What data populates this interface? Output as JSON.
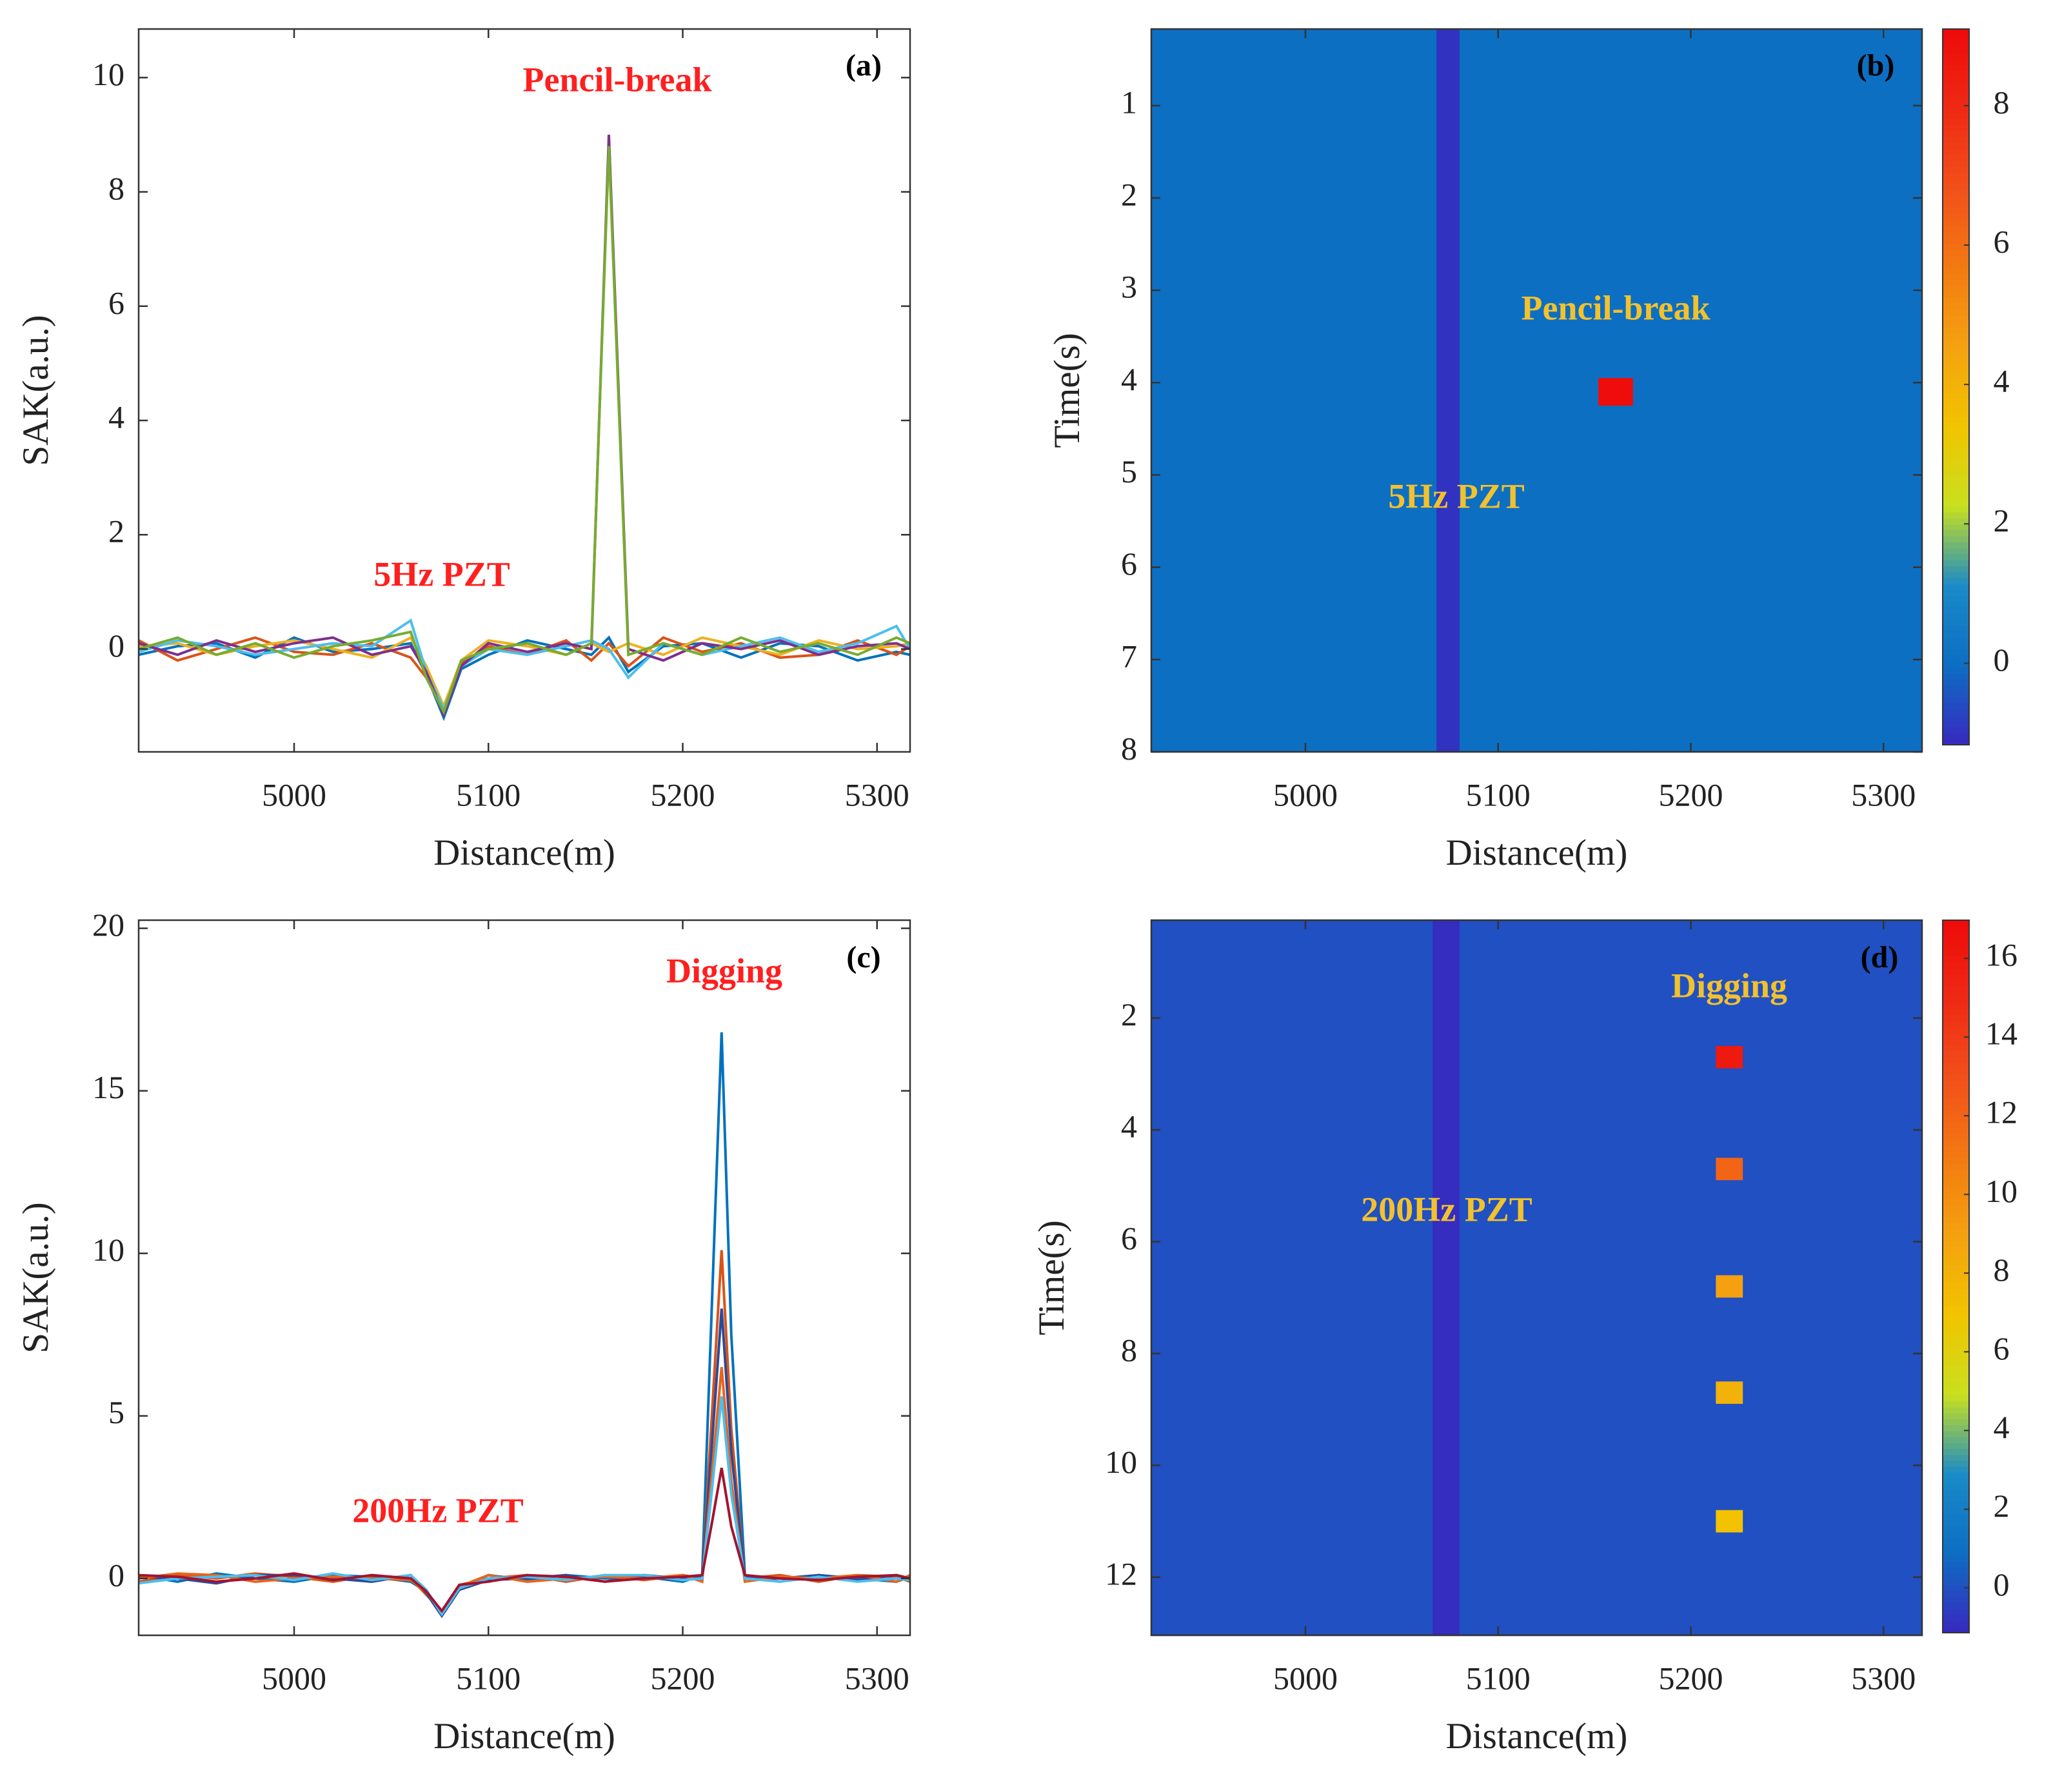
{
  "chart_data": [
    {
      "type": "line",
      "label": "(a)",
      "xlabel": "Distance(m)",
      "ylabel": "SAK(a.u.)",
      "xlim": [
        4920,
        5317
      ],
      "ylim": [
        -1.8,
        10.85
      ],
      "xticks": [
        5000,
        5100,
        5200,
        5300
      ],
      "yticks": [
        0,
        2,
        4,
        6,
        8,
        10
      ],
      "annotations": [
        {
          "text": "Pencil-break"
        },
        {
          "text": "5Hz PZT"
        }
      ],
      "annotation_color": "#ff1f1f",
      "x": [
        4920,
        4940,
        4960,
        4980,
        5000,
        5020,
        5040,
        5060,
        5068,
        5077,
        5086,
        5100,
        5120,
        5140,
        5153,
        5162,
        5172,
        5190,
        5210,
        5230,
        5250,
        5270,
        5290,
        5310,
        5317
      ],
      "series": [
        {
          "color": "#0072bd",
          "values": [
            -0.1,
            0.05,
            0.1,
            -0.15,
            0.2,
            -0.05,
            0,
            0.1,
            -0.45,
            -1.2,
            -0.35,
            -0.1,
            0.15,
            0,
            -0.1,
            0.2,
            -0.4,
            0.05,
            0.1,
            -0.15,
            0.1,
            0.05,
            -0.2,
            -0.05,
            -0.1
          ]
        },
        {
          "color": "#d95319",
          "values": [
            0.15,
            -0.2,
            0,
            0.2,
            -0.05,
            -0.1,
            0.1,
            -0.15,
            -0.5,
            -1.1,
            -0.25,
            0.05,
            -0.1,
            0.15,
            -0.2,
            0.1,
            -0.3,
            0.2,
            -0.05,
            0.1,
            -0.15,
            -0.1,
            0.15,
            -0.1,
            0.05
          ]
        },
        {
          "color": "#edb120",
          "values": [
            0.05,
            0.1,
            -0.1,
            0.05,
            0.15,
            0,
            -0.15,
            0.2,
            -0.3,
            -1.0,
            -0.2,
            0.15,
            0.05,
            -0.1,
            0.1,
            -0.05,
            0.1,
            -0.1,
            0.2,
            0.05,
            -0.1,
            0.15,
            0,
            0.05,
            0.1
          ]
        },
        {
          "color": "#4dbeee",
          "values": [
            -0.05,
            0.15,
            0.05,
            -0.1,
            0,
            0.1,
            0.05,
            0.5,
            -0.4,
            -1.05,
            -0.3,
            0,
            -0.1,
            0.05,
            0.15,
            0,
            -0.5,
            0.1,
            -0.1,
            0.05,
            0.2,
            -0.05,
            0.1,
            0.4,
            0
          ]
        },
        {
          "color": "#7e2f8e",
          "values": [
            0.1,
            -0.1,
            0.15,
            -0.05,
            0.1,
            0.2,
            -0.1,
            0.05,
            -0.4,
            -1.15,
            -0.3,
            0.1,
            -0.05,
            0.1,
            0,
            9,
            0,
            -0.2,
            0.1,
            0,
            0.15,
            -0.1,
            0.05,
            0.1,
            0
          ]
        },
        {
          "color": "#77ac30",
          "values": [
            0,
            0.2,
            -0.1,
            0.1,
            -0.15,
            0.05,
            0.15,
            0.3,
            -0.5,
            -1.1,
            -0.2,
            0,
            0.1,
            -0.1,
            0.1,
            8.8,
            -0.1,
            0.1,
            -0.1,
            0.2,
            -0.05,
            0.1,
            -0.1,
            0.2,
            0.1
          ]
        }
      ]
    },
    {
      "type": "heatmap",
      "label": "(b)",
      "xlabel": "Distance(m)",
      "ylabel": "Time(s)",
      "xlim": [
        4920,
        5320
      ],
      "ylim": [
        0.17,
        8
      ],
      "y_reversed": true,
      "xticks": [
        5000,
        5100,
        5200,
        5300
      ],
      "yticks": [
        1,
        2,
        3,
        4,
        5,
        6,
        7,
        8
      ],
      "annotations": [
        {
          "text": "Pencil-break"
        },
        {
          "text": "5Hz PZT"
        }
      ],
      "annotation_color": "#f2c12e",
      "x_edges": [
        4920,
        5068,
        5080,
        5152,
        5170,
        5320
      ],
      "y_edges": [
        0.17,
        3.95,
        4.25,
        8
      ],
      "values": [
        [
          0,
          -1,
          0,
          0,
          0
        ],
        [
          0,
          -1,
          0,
          9,
          0
        ],
        [
          0,
          -1,
          0,
          0,
          0
        ]
      ],
      "clim": [
        -1.17,
        9.1
      ],
      "cticks": [
        0,
        2,
        4,
        6,
        8
      ],
      "colormap": [
        "#3828c0",
        "#0d6ec2",
        "#1a8ac8",
        "#c8e020",
        "#f2c400",
        "#f4a210",
        "#f37a12",
        "#f2501a",
        "#ef2a14",
        "#ee0a0a"
      ]
    },
    {
      "type": "line",
      "label": "(c)",
      "xlabel": "Distance(m)",
      "ylabel": "SAK(a.u.)",
      "xlim": [
        4920,
        5317
      ],
      "ylim": [
        -1.75,
        20.25
      ],
      "xticks": [
        5000,
        5100,
        5200,
        5300
      ],
      "yticks": [
        0,
        5,
        10,
        15,
        20
      ],
      "annotations": [
        {
          "text": "Digging"
        },
        {
          "text": "200Hz PZT"
        }
      ],
      "annotation_color": "#ff1f1f",
      "x": [
        4920,
        4940,
        4960,
        4980,
        5000,
        5020,
        5040,
        5060,
        5068,
        5076,
        5085,
        5100,
        5120,
        5140,
        5160,
        5180,
        5200,
        5210,
        5215,
        5220,
        5225,
        5232,
        5250,
        5270,
        5290,
        5310,
        5317
      ],
      "series": [
        {
          "color": "#0072bd",
          "values": [
            0.1,
            -0.1,
            0.15,
            0,
            -0.1,
            0.1,
            0.05,
            -0.1,
            -0.4,
            -1.1,
            -0.3,
            0.1,
            -0.05,
            0.1,
            0,
            0.05,
            -0.1,
            0.1,
            8.4,
            16.8,
            7.5,
            0.1,
            -0.1,
            0.1,
            0,
            -0.1,
            0.05
          ]
        },
        {
          "color": "#d95319",
          "values": [
            -0.1,
            0.1,
            0,
            0.15,
            0.05,
            -0.1,
            0.1,
            0,
            -0.5,
            -1.0,
            -0.2,
            0,
            0.1,
            -0.1,
            0.1,
            -0.05,
            0.1,
            0,
            5.0,
            10.1,
            4.6,
            0,
            0.1,
            -0.1,
            0.1,
            0.05,
            -0.1
          ]
        },
        {
          "color": "#2b4a9a",
          "values": [
            0.05,
            0,
            -0.15,
            0.1,
            0.1,
            0,
            -0.1,
            0.1,
            -0.45,
            -1.15,
            -0.35,
            -0.05,
            0,
            0.1,
            -0.1,
            0.1,
            0,
            0.05,
            4.1,
            8.3,
            3.9,
            0.05,
            0,
            0.1,
            -0.05,
            0.1,
            0
          ]
        },
        {
          "color": "#e8641c",
          "values": [
            0,
            0.15,
            0.1,
            -0.1,
            0,
            0.05,
            0,
            -0.05,
            -0.4,
            -1.05,
            -0.25,
            0.1,
            -0.1,
            0,
            0.05,
            0,
            0.1,
            -0.1,
            3.2,
            6.5,
            3.0,
            -0.1,
            0.05,
            0,
            0.1,
            -0.1,
            0.1
          ]
        },
        {
          "color": "#4dbeee",
          "values": [
            -0.15,
            0,
            0.05,
            0.1,
            -0.05,
            0.15,
            -0.05,
            0.1,
            -0.35,
            -1.1,
            -0.3,
            0,
            0.05,
            -0.05,
            0.1,
            0.1,
            -0.05,
            0,
            2.7,
            5.6,
            2.6,
            0,
            -0.1,
            0.05,
            -0.1,
            0,
            -0.05
          ]
        },
        {
          "color": "#a2142f",
          "values": [
            0.1,
            0.05,
            -0.1,
            0,
            0.15,
            -0.05,
            0.1,
            0,
            -0.4,
            -1.0,
            -0.2,
            -0.1,
            0.1,
            0.05,
            -0.1,
            0,
            0.05,
            0.1,
            1.7,
            3.4,
            1.6,
            0.1,
            0,
            -0.05,
            0.05,
            0.1,
            0
          ]
        }
      ]
    },
    {
      "type": "heatmap",
      "label": "(d)",
      "xlabel": "Distance(m)",
      "ylabel": "Time(s)",
      "xlim": [
        4920,
        5320
      ],
      "ylim": [
        0.25,
        13.04
      ],
      "y_reversed": true,
      "xticks": [
        5000,
        5100,
        5200,
        5300
      ],
      "yticks": [
        2,
        4,
        6,
        8,
        10,
        12
      ],
      "annotations": [
        {
          "text": "Digging"
        },
        {
          "text": "200Hz PZT"
        }
      ],
      "annotation_color": "#f2c12e",
      "x_edges": [
        4920,
        5066,
        5080,
        5213,
        5227,
        5320
      ],
      "y_edges": [
        0.25,
        2.5,
        2.9,
        4.5,
        4.9,
        6.6,
        7.0,
        8.5,
        8.9,
        10.8,
        11.2,
        13.04
      ],
      "values": [
        [
          0,
          -1,
          0,
          0,
          0
        ],
        [
          0,
          -1,
          0,
          16,
          0
        ],
        [
          0,
          -1,
          0,
          0,
          0
        ],
        [
          0,
          -1,
          0,
          12,
          0
        ],
        [
          0,
          -1,
          0,
          0,
          0
        ],
        [
          0,
          -1,
          0,
          9,
          0
        ],
        [
          0,
          -1,
          0,
          0,
          0
        ],
        [
          0,
          -1,
          0,
          8,
          0
        ],
        [
          0,
          -1,
          0,
          0,
          0
        ],
        [
          0,
          -1,
          0,
          7,
          0
        ],
        [
          0,
          -1,
          0,
          0,
          0
        ]
      ],
      "clim": [
        -1.14,
        16.97
      ],
      "cticks": [
        0,
        2,
        4,
        6,
        8,
        10,
        12,
        14,
        16
      ],
      "colormap": [
        "#3828c0",
        "#0d6ec2",
        "#1a8ac8",
        "#c8e020",
        "#f2c400",
        "#f4a210",
        "#f37a12",
        "#f2501a",
        "#ef2a14",
        "#ee0a0a"
      ]
    }
  ]
}
